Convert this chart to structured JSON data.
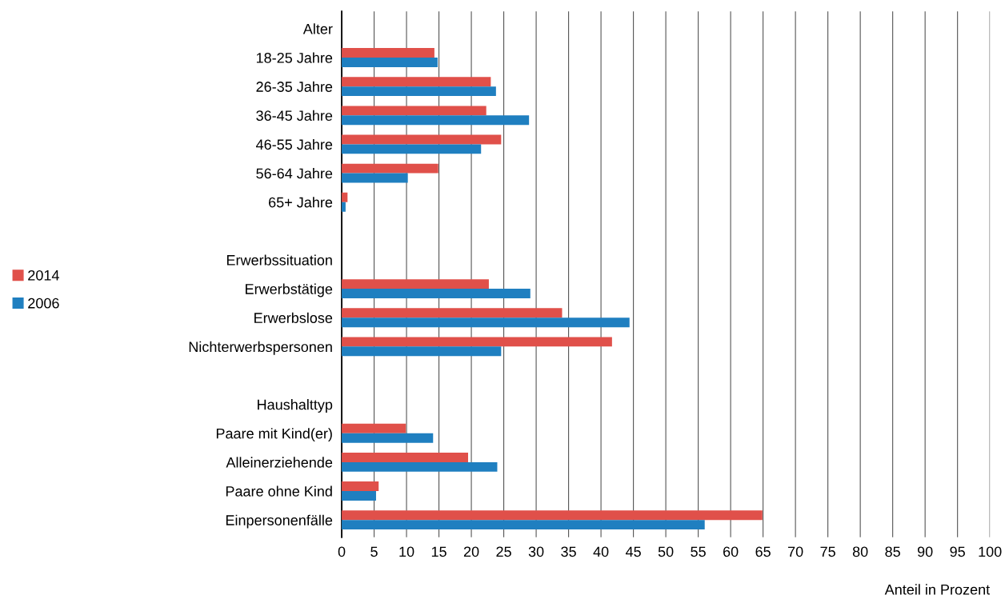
{
  "chart_data": {
    "type": "bar",
    "orientation": "horizontal",
    "xlabel": "Anteil in Prozent",
    "categories": [
      "Alter",
      "18-25 Jahre",
      "26-35 Jahre",
      "36-45 Jahre",
      "46-55 Jahre",
      "56-64 Jahre",
      "65+ Jahre",
      null,
      "Erwerbssituation",
      "Erwerbstätige",
      "Erwerbslose",
      "Nichterwerbspersonen",
      null,
      "Haushalttyp",
      "Paare mit Kind(er)",
      "Alleinerziehende",
      "Paare ohne Kind",
      "Einpersonenfälle"
    ],
    "series": [
      {
        "name": "2014",
        "color": "#e0504a",
        "values": [
          null,
          14.3,
          23.0,
          22.3,
          24.6,
          14.9,
          0.9,
          null,
          null,
          22.7,
          34.0,
          41.7,
          null,
          null,
          9.9,
          19.5,
          5.7,
          64.9
        ]
      },
      {
        "name": "2006",
        "color": "#1f7fc0",
        "values": [
          null,
          14.8,
          23.8,
          28.9,
          21.5,
          10.2,
          0.6,
          null,
          null,
          29.1,
          44.4,
          24.6,
          null,
          null,
          14.1,
          24.0,
          5.3,
          56.0
        ]
      }
    ],
    "xlim": [
      0,
      100
    ],
    "xticks": [
      0,
      5,
      10,
      15,
      20,
      25,
      30,
      35,
      40,
      45,
      50,
      55,
      60,
      65,
      70,
      75,
      80,
      85,
      90,
      95,
      100
    ],
    "grid": "x",
    "legend": "left"
  }
}
